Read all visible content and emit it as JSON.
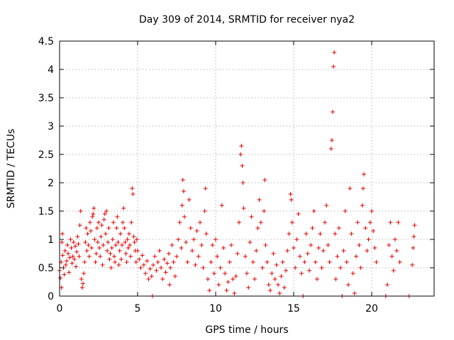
{
  "chart_data": {
    "type": "scatter",
    "title": "Day 309 of 2014, SRMTID for receiver nya2",
    "xlabel": "GPS time / hours",
    "ylabel": "SRMTID / TECUs",
    "xlim": [
      0,
      24
    ],
    "ylim": [
      0,
      4.5
    ],
    "xticks": [
      0,
      5,
      10,
      15,
      20
    ],
    "xtick_labels": [
      "0",
      "5",
      "10",
      "15",
      "20"
    ],
    "yticks": [
      0,
      0.5,
      1,
      1.5,
      2,
      2.5,
      3,
      3.5,
      4,
      4.5
    ],
    "ytick_labels": [
      "0",
      "0.5",
      "1",
      "1.5",
      "2",
      "2.5",
      "3",
      "3.5",
      "4",
      "4.5"
    ],
    "grid": true,
    "marker": "+",
    "color": "#e00000",
    "series": [
      {
        "name": "nya2",
        "points": [
          [
            0.0,
            0.45
          ],
          [
            0.05,
            0.32
          ],
          [
            0.1,
            0.6
          ],
          [
            0.12,
            0.15
          ],
          [
            0.15,
            0.95
          ],
          [
            0.18,
            1.1
          ],
          [
            0.2,
            0.72
          ],
          [
            0.25,
            0.5
          ],
          [
            0.3,
            0.38
          ],
          [
            0.35,
            0.8
          ],
          [
            0.4,
            0.55
          ],
          [
            0.45,
            0.62
          ],
          [
            0.5,
            0.9
          ],
          [
            0.55,
            0.75
          ],
          [
            0.6,
            0.42
          ],
          [
            0.65,
            0.68
          ],
          [
            0.7,
            1.0
          ],
          [
            0.75,
            0.85
          ],
          [
            0.8,
            0.58
          ],
          [
            0.85,
            0.7
          ],
          [
            0.9,
            0.95
          ],
          [
            0.95,
            0.65
          ],
          [
            1.0,
            0.88
          ],
          [
            1.05,
            0.52
          ],
          [
            1.1,
            0.78
          ],
          [
            1.15,
            1.05
          ],
          [
            1.2,
            0.92
          ],
          [
            1.25,
            0.7
          ],
          [
            1.3,
            1.25
          ],
          [
            1.35,
            1.5
          ],
          [
            1.4,
            0.3
          ],
          [
            1.45,
            0.15
          ],
          [
            1.5,
            0.22
          ],
          [
            1.55,
            0.4
          ],
          [
            1.6,
            0.6
          ],
          [
            1.65,
            0.95
          ],
          [
            1.7,
            1.2
          ],
          [
            1.75,
            0.8
          ],
          [
            1.8,
            1.1
          ],
          [
            1.85,
            0.9
          ],
          [
            1.9,
            0.7
          ],
          [
            1.95,
            1.3
          ],
          [
            2.0,
            1.15
          ],
          [
            2.05,
            0.85
          ],
          [
            2.1,
            1.4
          ],
          [
            2.15,
            1.45
          ],
          [
            2.2,
            1.55
          ],
          [
            2.25,
            1.0
          ],
          [
            2.3,
            0.6
          ],
          [
            2.35,
            0.75
          ],
          [
            2.4,
            1.2
          ],
          [
            2.45,
            0.95
          ],
          [
            2.5,
            1.3
          ],
          [
            2.55,
            0.85
          ],
          [
            2.6,
            0.7
          ],
          [
            2.65,
            1.05
          ],
          [
            2.7,
            1.25
          ],
          [
            2.75,
            0.55
          ],
          [
            2.8,
            0.9
          ],
          [
            2.85,
            1.35
          ],
          [
            2.9,
            1.45
          ],
          [
            2.95,
            1.1
          ],
          [
            3.0,
            1.5
          ],
          [
            3.05,
            0.8
          ],
          [
            3.1,
            0.95
          ],
          [
            3.15,
            1.2
          ],
          [
            3.2,
            0.65
          ],
          [
            3.25,
            0.75
          ],
          [
            3.3,
            0.5
          ],
          [
            3.35,
            0.85
          ],
          [
            3.4,
            1.0
          ],
          [
            3.45,
            1.3
          ],
          [
            3.5,
            0.7
          ],
          [
            3.55,
            0.6
          ],
          [
            3.6,
            0.9
          ],
          [
            3.65,
            1.2
          ],
          [
            3.7,
            1.4
          ],
          [
            3.75,
            0.95
          ],
          [
            3.8,
            0.55
          ],
          [
            3.85,
            0.8
          ],
          [
            3.9,
            1.1
          ],
          [
            3.95,
            0.65
          ],
          [
            4.0,
            0.9
          ],
          [
            4.05,
            1.3
          ],
          [
            4.1,
            1.55
          ],
          [
            4.15,
            1.2
          ],
          [
            4.2,
            0.95
          ],
          [
            4.25,
            0.75
          ],
          [
            4.3,
            0.6
          ],
          [
            4.35,
            1.0
          ],
          [
            4.4,
            0.85
          ],
          [
            4.45,
            1.1
          ],
          [
            4.5,
            0.9
          ],
          [
            4.55,
            0.7
          ],
          [
            4.6,
            1.3
          ],
          [
            4.65,
            1.9
          ],
          [
            4.7,
            1.8
          ],
          [
            4.75,
            1.05
          ],
          [
            4.8,
            0.95
          ],
          [
            4.85,
            0.8
          ],
          [
            4.9,
            0.6
          ],
          [
            4.95,
            1.0
          ],
          [
            5.0,
            0.8
          ],
          [
            5.1,
            0.65
          ],
          [
            5.2,
            0.5
          ],
          [
            5.3,
            0.72
          ],
          [
            5.4,
            0.55
          ],
          [
            5.5,
            0.4
          ],
          [
            5.6,
            0.62
          ],
          [
            5.7,
            0.3
          ],
          [
            5.8,
            0.48
          ],
          [
            5.9,
            0.35
          ],
          [
            5.95,
            0.0
          ],
          [
            6.0,
            0.55
          ],
          [
            6.1,
            0.7
          ],
          [
            6.2,
            0.45
          ],
          [
            6.3,
            0.6
          ],
          [
            6.4,
            0.8
          ],
          [
            6.5,
            0.5
          ],
          [
            6.6,
            0.3
          ],
          [
            6.7,
            0.65
          ],
          [
            6.8,
            0.42
          ],
          [
            6.9,
            0.58
          ],
          [
            7.0,
            0.75
          ],
          [
            7.05,
            0.2
          ],
          [
            7.1,
            0.5
          ],
          [
            7.2,
            0.9
          ],
          [
            7.3,
            0.6
          ],
          [
            7.4,
            0.35
          ],
          [
            7.5,
            0.7
          ],
          [
            7.6,
            1.0
          ],
          [
            7.7,
            1.3
          ],
          [
            7.8,
            0.85
          ],
          [
            7.85,
            1.6
          ],
          [
            7.9,
            2.05
          ],
          [
            7.95,
            1.85
          ],
          [
            8.0,
            1.4
          ],
          [
            8.1,
            0.95
          ],
          [
            8.2,
            0.6
          ],
          [
            8.3,
            1.7
          ],
          [
            8.4,
            1.2
          ],
          [
            8.5,
            0.8
          ],
          [
            8.6,
            1.0
          ],
          [
            8.7,
            0.55
          ],
          [
            8.8,
            1.15
          ],
          [
            8.9,
            0.7
          ],
          [
            9.0,
            1.3
          ],
          [
            9.1,
            0.9
          ],
          [
            9.2,
            0.5
          ],
          [
            9.3,
            1.5
          ],
          [
            9.35,
            1.9
          ],
          [
            9.4,
            1.1
          ],
          [
            9.5,
            0.3
          ],
          [
            9.6,
            0.1
          ],
          [
            9.7,
            0.6
          ],
          [
            9.8,
            0.9
          ],
          [
            9.9,
            0.4
          ],
          [
            10.0,
            1.0
          ],
          [
            10.1,
            0.7
          ],
          [
            10.2,
            0.2
          ],
          [
            10.3,
            0.5
          ],
          [
            10.4,
            1.6
          ],
          [
            10.5,
            0.85
          ],
          [
            10.6,
            0.4
          ],
          [
            10.7,
            0.1
          ],
          [
            10.8,
            0.25
          ],
          [
            10.9,
            0.6
          ],
          [
            11.0,
            0.9
          ],
          [
            11.1,
            0.3
          ],
          [
            11.2,
            0.05
          ],
          [
            11.3,
            0.35
          ],
          [
            11.4,
            0.75
          ],
          [
            11.5,
            1.3
          ],
          [
            11.6,
            2.5
          ],
          [
            11.65,
            2.65
          ],
          [
            11.7,
            2.3
          ],
          [
            11.75,
            2.0
          ],
          [
            11.8,
            1.55
          ],
          [
            11.9,
            0.7
          ],
          [
            12.0,
            0.4
          ],
          [
            12.1,
            0.15
          ],
          [
            12.2,
            0.95
          ],
          [
            12.3,
            1.4
          ],
          [
            12.4,
            0.6
          ],
          [
            12.5,
            0.3
          ],
          [
            12.6,
            0.8
          ],
          [
            12.7,
            1.2
          ],
          [
            12.8,
            1.7
          ],
          [
            12.9,
            1.3
          ],
          [
            13.0,
            0.5
          ],
          [
            13.1,
            1.5
          ],
          [
            13.15,
            2.05
          ],
          [
            13.2,
            0.9
          ],
          [
            13.3,
            0.6
          ],
          [
            13.4,
            0.2
          ],
          [
            13.5,
            0.1
          ],
          [
            13.6,
            0.4
          ],
          [
            13.7,
            0.75
          ],
          [
            13.8,
            0.3
          ],
          [
            13.9,
            0.55
          ],
          [
            14.0,
            0.2
          ],
          [
            14.1,
            0.05
          ],
          [
            14.2,
            0.35
          ],
          [
            14.3,
            0.6
          ],
          [
            14.4,
            0.15
          ],
          [
            14.5,
            0.45
          ],
          [
            14.6,
            0.8
          ],
          [
            14.7,
            1.1
          ],
          [
            14.8,
            1.8
          ],
          [
            14.85,
            1.7
          ],
          [
            14.9,
            1.3
          ],
          [
            15.0,
            0.85
          ],
          [
            15.1,
            0.5
          ],
          [
            15.2,
            1.0
          ],
          [
            15.3,
            1.45
          ],
          [
            15.4,
            0.7
          ],
          [
            15.5,
            0.4
          ],
          [
            15.6,
            0.0
          ],
          [
            15.7,
            0.6
          ],
          [
            15.8,
            1.1
          ],
          [
            15.9,
            0.75
          ],
          [
            16.0,
            0.45
          ],
          [
            16.1,
            0.9
          ],
          [
            16.2,
            1.2
          ],
          [
            16.3,
            1.5
          ],
          [
            16.4,
            0.6
          ],
          [
            16.5,
            0.3
          ],
          [
            16.6,
            0.85
          ],
          [
            16.7,
            1.1
          ],
          [
            16.8,
            0.5
          ],
          [
            16.9,
            0.8
          ],
          [
            17.0,
            1.3
          ],
          [
            17.1,
            1.6
          ],
          [
            17.2,
            0.9
          ],
          [
            17.3,
            0.6
          ],
          [
            17.4,
            2.6
          ],
          [
            17.45,
            2.75
          ],
          [
            17.5,
            3.25
          ],
          [
            17.55,
            4.05
          ],
          [
            17.6,
            4.3
          ],
          [
            17.65,
            1.1
          ],
          [
            17.7,
            0.3
          ],
          [
            17.8,
            0.7
          ],
          [
            17.9,
            1.2
          ],
          [
            18.0,
            0.5
          ],
          [
            18.1,
            0.0
          ],
          [
            18.2,
            0.8
          ],
          [
            18.3,
            1.5
          ],
          [
            18.4,
            0.6
          ],
          [
            18.5,
            0.2
          ],
          [
            18.6,
            1.9
          ],
          [
            18.7,
            1.1
          ],
          [
            18.8,
            0.4
          ],
          [
            18.9,
            0.05
          ],
          [
            19.0,
            0.7
          ],
          [
            19.1,
            1.3
          ],
          [
            19.2,
            0.9
          ],
          [
            19.3,
            0.5
          ],
          [
            19.4,
            1.6
          ],
          [
            19.45,
            1.9
          ],
          [
            19.5,
            2.15
          ],
          [
            19.6,
            1.2
          ],
          [
            19.7,
            0.8
          ],
          [
            19.8,
            1.0
          ],
          [
            19.9,
            1.3
          ],
          [
            20.0,
            1.5
          ],
          [
            20.1,
            1.15
          ],
          [
            20.2,
            0.85
          ],
          [
            20.3,
            0.6
          ],
          [
            20.9,
            0.0
          ],
          [
            21.0,
            0.2
          ],
          [
            21.1,
            0.9
          ],
          [
            21.2,
            1.3
          ],
          [
            21.3,
            0.7
          ],
          [
            21.4,
            0.45
          ],
          [
            21.5,
            1.0
          ],
          [
            21.6,
            0.8
          ],
          [
            21.7,
            1.3
          ],
          [
            21.8,
            0.6
          ],
          [
            22.4,
            0.0
          ],
          [
            22.6,
            0.55
          ],
          [
            22.65,
            0.85
          ],
          [
            22.7,
            1.05
          ],
          [
            22.75,
            1.25
          ]
        ]
      }
    ]
  }
}
